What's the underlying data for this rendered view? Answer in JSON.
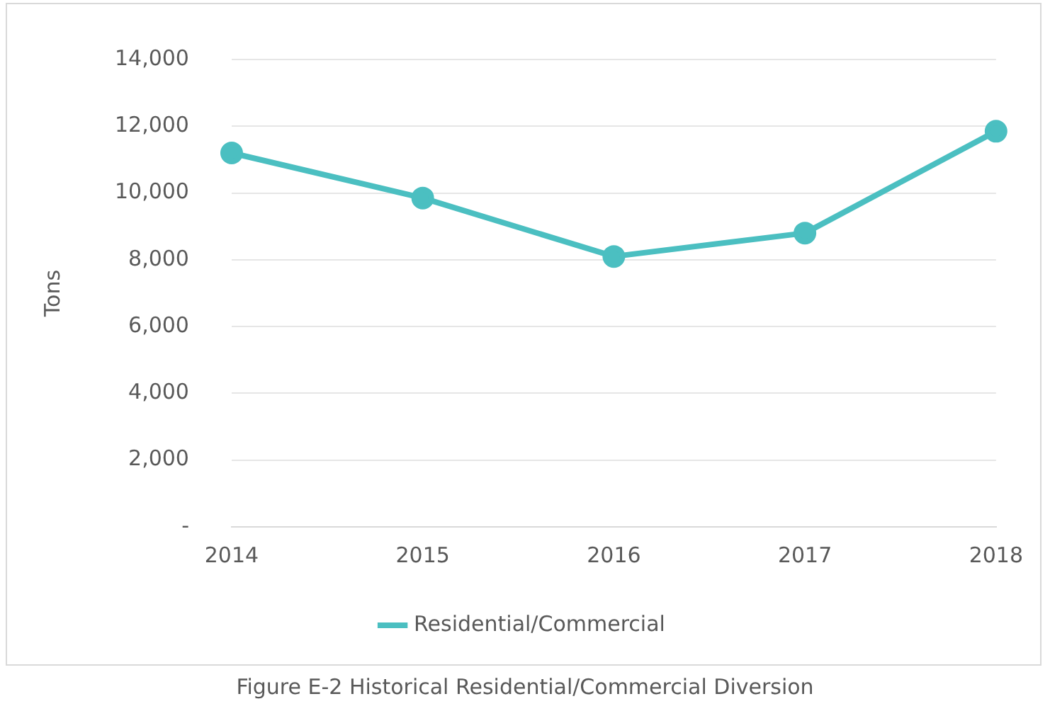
{
  "chart_data": {
    "type": "line",
    "ylabel": "Tons",
    "categories": [
      "2014",
      "2015",
      "2016",
      "2017",
      "2018"
    ],
    "series": [
      {
        "name": "Residential/Commercial",
        "color": "#4bbfc1",
        "values": [
          11200,
          9850,
          8100,
          8800,
          11850
        ]
      }
    ],
    "ylim": [
      0,
      14000
    ],
    "yticks": [
      {
        "value": 0,
        "label": "-"
      },
      {
        "value": 2000,
        "label": "2,000"
      },
      {
        "value": 4000,
        "label": "4,000"
      },
      {
        "value": 6000,
        "label": "6,000"
      },
      {
        "value": 8000,
        "label": "8,000"
      },
      {
        "value": 10000,
        "label": "10,000"
      },
      {
        "value": 12000,
        "label": "12,000"
      },
      {
        "value": 14000,
        "label": "14,000"
      }
    ],
    "grid": "y",
    "legend": "bottom",
    "marker": "circle",
    "line_style": "solid",
    "annotations": [
      "Figure E-2 Historical Residential/Commercial Diversion"
    ]
  }
}
